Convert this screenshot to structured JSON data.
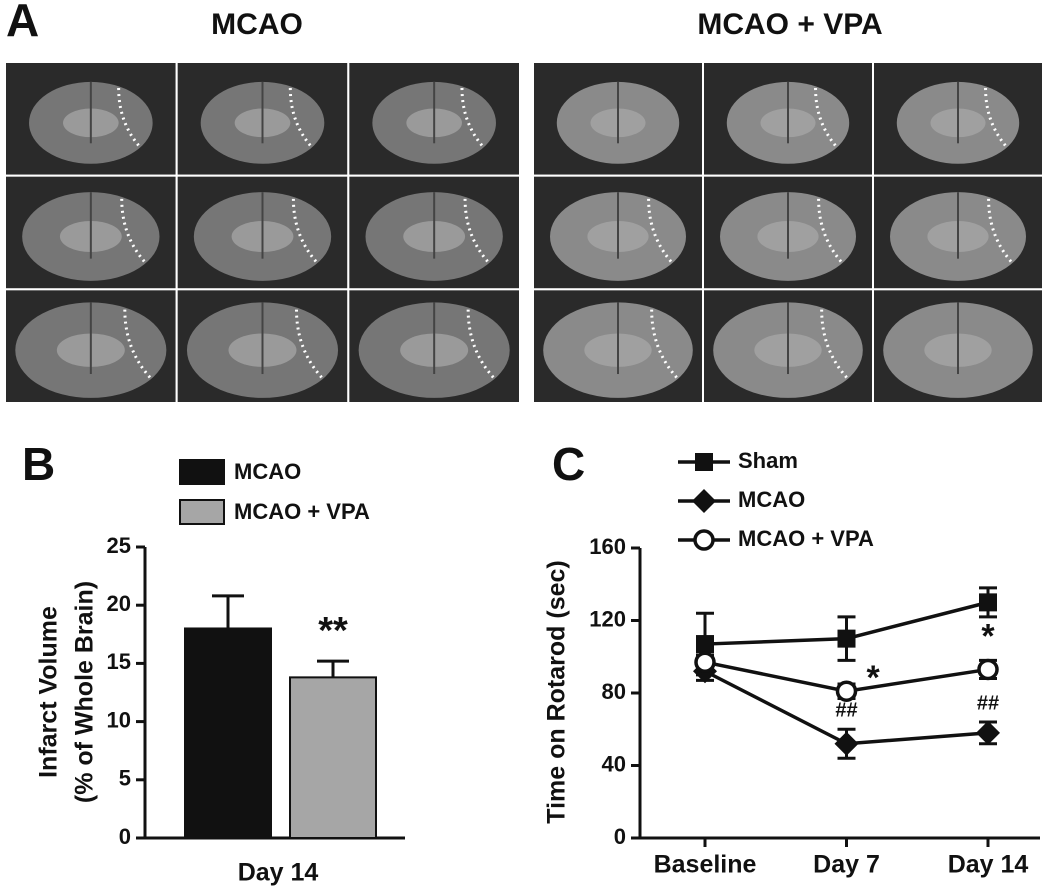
{
  "panel_a": {
    "label": "A",
    "groups": [
      "MCAO",
      "MCAO + VPA"
    ]
  },
  "chart_data": [
    {
      "type": "bar",
      "panel_label": "B",
      "ylabel": [
        "Infarct Volume",
        "(% of Whole Brain)"
      ],
      "xlabel": "Day 14",
      "series": [
        {
          "name": "MCAO",
          "color": "#111111",
          "values": [
            18
          ],
          "errors": [
            2.8
          ],
          "annotations": [
            null
          ]
        },
        {
          "name": "MCAO + VPA",
          "color": "#a6a6a6",
          "values": [
            13.8
          ],
          "errors": [
            1.4
          ],
          "annotations": [
            "**"
          ]
        }
      ],
      "ylim": [
        0,
        25
      ],
      "yticks": [
        0,
        5,
        10,
        15,
        20,
        25
      ]
    },
    {
      "type": "line",
      "panel_label": "C",
      "ylabel": "Time on Rotarod (sec)",
      "categories": [
        "Baseline",
        "Day 7",
        "Day 14"
      ],
      "series": [
        {
          "name": "Sham",
          "color": "#111111",
          "marker": "square",
          "values": [
            107,
            110,
            130
          ],
          "errors": [
            17,
            12,
            8
          ],
          "annotations": [
            null,
            null,
            null
          ]
        },
        {
          "name": "MCAO",
          "color": "#111111",
          "marker": "diamond",
          "values": [
            92,
            52,
            58
          ],
          "errors": [
            5,
            8,
            6
          ],
          "annotations": [
            null,
            "##",
            "##"
          ]
        },
        {
          "name": "MCAO + VPA",
          "color": "#111111",
          "marker": "circle-open",
          "values": [
            97,
            81,
            93
          ],
          "errors": [
            4,
            4,
            5
          ],
          "annotations": [
            null,
            "*",
            "*"
          ]
        }
      ],
      "ylim": [
        0,
        160
      ],
      "yticks": [
        0,
        40,
        80,
        120,
        160
      ]
    }
  ]
}
